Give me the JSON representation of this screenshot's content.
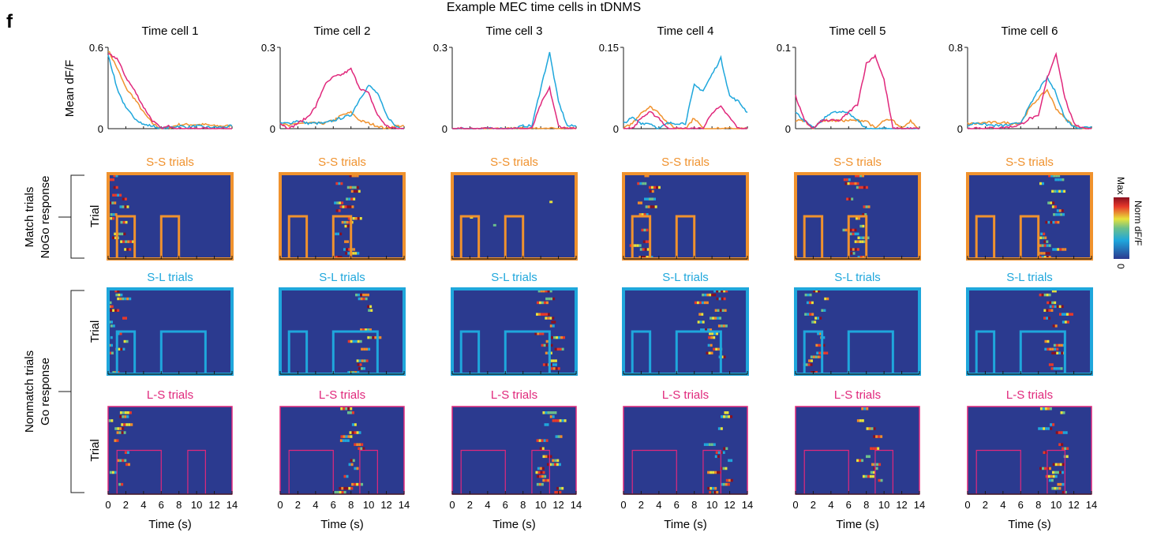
{
  "panel_letter": "f",
  "figure_title": "Example MEC time cells in tDNMS",
  "colors": {
    "SS": "#f0922e",
    "SL": "#1fa7dc",
    "LS": "#e0287c",
    "heatmap_bg": "#2b3a8f",
    "axis": "#1a1a1a"
  },
  "row_labels": {
    "match_line1": "Match trials",
    "match_line2": "NoGo response",
    "nonmatch_line1": "Nonmatch trials",
    "nonmatch_line2": "Go response",
    "trial": "Trial"
  },
  "heatmap_titles": {
    "SS": "S-S trials",
    "SL": "S-L trials",
    "LS": "L-S trials"
  },
  "colorbar": {
    "max_label": "Max",
    "min_label": "0",
    "label": "Norm dF/F"
  },
  "x_axis": {
    "label": "Time (s)",
    "ticks": [
      "0",
      "2",
      "4",
      "6",
      "8",
      "10",
      "12",
      "14"
    ],
    "range": [
      0,
      14
    ]
  },
  "y_axis_label": "Mean dF/F",
  "stimulus_windows": {
    "SS": [
      [
        1,
        3
      ],
      [
        6,
        8
      ]
    ],
    "SL": [
      [
        1,
        3
      ],
      [
        6,
        11
      ]
    ],
    "LS": [
      [
        1,
        6
      ],
      [
        9,
        11
      ]
    ]
  },
  "chart_data": [
    {
      "type": "line",
      "title": "Time cell 1",
      "ylim": [
        0,
        0.6
      ],
      "ytick_labels": [
        "0.6",
        "0"
      ],
      "x": [
        0,
        1,
        2,
        3,
        4,
        5,
        6,
        7,
        8,
        9,
        10,
        11,
        12,
        13,
        14
      ],
      "series": [
        {
          "name": "S-S",
          "values": [
            0.58,
            0.45,
            0.3,
            0.22,
            0.12,
            0.04,
            0.0,
            0.01,
            0.03,
            0.03,
            0.03,
            0.03,
            0.02,
            0.02,
            0.02
          ]
        },
        {
          "name": "S-L",
          "values": [
            0.55,
            0.3,
            0.15,
            0.08,
            0.03,
            0.02,
            0.0,
            0.01,
            0.02,
            0.01,
            0.02,
            0.01,
            0.01,
            0.01,
            0.02
          ]
        },
        {
          "name": "L-S",
          "values": [
            0.55,
            0.52,
            0.38,
            0.28,
            0.16,
            0.06,
            0.0,
            0.02,
            0.0,
            0.0,
            0.0,
            0.0,
            0.0,
            0.0,
            0.0
          ]
        }
      ]
    },
    {
      "type": "line",
      "title": "Time cell 2",
      "ylim": [
        0,
        0.3
      ],
      "ytick_labels": [
        "0.3",
        "0"
      ],
      "x": [
        0,
        1,
        2,
        3,
        4,
        5,
        6,
        7,
        8,
        9,
        10,
        11,
        12,
        13,
        14
      ],
      "series": [
        {
          "name": "S-S",
          "values": [
            0.02,
            0.01,
            0.02,
            0.02,
            0.02,
            0.02,
            0.03,
            0.05,
            0.06,
            0.03,
            0.02,
            0.01,
            0.0,
            0.01,
            0.01
          ]
        },
        {
          "name": "S-L",
          "values": [
            0.02,
            0.02,
            0.03,
            0.02,
            0.02,
            0.02,
            0.03,
            0.04,
            0.05,
            0.11,
            0.16,
            0.13,
            0.05,
            0.01,
            0.0
          ]
        },
        {
          "name": "L-S",
          "values": [
            0.02,
            0.0,
            0.02,
            0.04,
            0.08,
            0.16,
            0.19,
            0.2,
            0.22,
            0.15,
            0.13,
            0.05,
            0.01,
            0.0,
            0.0
          ]
        }
      ]
    },
    {
      "type": "line",
      "title": "Time cell 3",
      "ylim": [
        0,
        0.3
      ],
      "ytick_labels": [
        "0.3",
        "0"
      ],
      "x": [
        0,
        1,
        2,
        3,
        4,
        5,
        6,
        7,
        8,
        9,
        10,
        11,
        12,
        13,
        14
      ],
      "series": [
        {
          "name": "S-S",
          "values": [
            0,
            0,
            0,
            0,
            0,
            0,
            0,
            0,
            0,
            0,
            0,
            0,
            0,
            0,
            0
          ]
        },
        {
          "name": "S-L",
          "values": [
            0,
            0,
            0,
            0,
            0,
            0,
            0,
            0,
            0.01,
            0.01,
            0.15,
            0.28,
            0.1,
            0.01,
            0.01
          ]
        },
        {
          "name": "L-S",
          "values": [
            0,
            0,
            0,
            0,
            0,
            0,
            0,
            0,
            0,
            0,
            0.09,
            0.15,
            0.01,
            0,
            0
          ]
        }
      ]
    },
    {
      "type": "line",
      "title": "Time cell 4",
      "ylim": [
        0,
        0.15
      ],
      "ytick_labels": [
        "0.15",
        "0"
      ],
      "x": [
        0,
        1,
        2,
        3,
        4,
        5,
        6,
        7,
        8,
        9,
        10,
        11,
        12,
        13,
        14
      ],
      "series": [
        {
          "name": "S-S",
          "values": [
            0.0,
            0.01,
            0.03,
            0.04,
            0.03,
            0.01,
            0.0,
            0.0,
            0.02,
            0.0,
            0.0,
            0.0,
            0.0,
            0.0,
            0.0
          ]
        },
        {
          "name": "S-L",
          "values": [
            0.01,
            0.02,
            0.01,
            0.01,
            0.0,
            0.01,
            0.01,
            0.01,
            0.08,
            0.07,
            0.1,
            0.13,
            0.06,
            0.05,
            0.03
          ]
        },
        {
          "name": "L-S",
          "values": [
            0.0,
            0.0,
            0.02,
            0.03,
            0.02,
            0.0,
            0.0,
            0.0,
            0.0,
            0.0,
            0.03,
            0.04,
            0.02,
            0.0,
            0.0
          ]
        }
      ]
    },
    {
      "type": "line",
      "title": "Time cell 5",
      "ylim": [
        0,
        0.1
      ],
      "ytick_labels": [
        "0.1",
        "0"
      ],
      "x": [
        0,
        1,
        2,
        3,
        4,
        5,
        6,
        7,
        8,
        9,
        10,
        11,
        12,
        13,
        14
      ],
      "series": [
        {
          "name": "S-S",
          "values": [
            0.01,
            0.01,
            0.0,
            0.01,
            0.01,
            0.01,
            0.01,
            0.01,
            0.01,
            0.0,
            0.01,
            0.01,
            0.0,
            0.01,
            0.0
          ]
        },
        {
          "name": "S-L",
          "values": [
            0.02,
            0.01,
            0.0,
            0.01,
            0.02,
            0.02,
            0.02,
            0.01,
            0.0,
            0.0,
            0.0,
            0.0,
            0.0,
            0.0,
            0.0
          ]
        },
        {
          "name": "L-S",
          "values": [
            0.04,
            0.01,
            0.0,
            0.01,
            0.01,
            0.01,
            0.02,
            0.03,
            0.08,
            0.09,
            0.06,
            0.0,
            0.0,
            0.0,
            0.0
          ]
        }
      ]
    },
    {
      "type": "line",
      "title": "Time cell 6",
      "ylim": [
        0,
        0.8
      ],
      "ytick_labels": [
        "0.8",
        "0"
      ],
      "x": [
        0,
        1,
        2,
        3,
        4,
        5,
        6,
        7,
        8,
        9,
        10,
        11,
        12,
        13,
        14
      ],
      "series": [
        {
          "name": "S-S",
          "values": [
            0.05,
            0.05,
            0.06,
            0.06,
            0.06,
            0.05,
            0.06,
            0.2,
            0.3,
            0.38,
            0.2,
            0.1,
            0.03,
            0.01,
            0.0
          ]
        },
        {
          "name": "S-L",
          "values": [
            0.03,
            0.06,
            0.04,
            0.03,
            0.03,
            0.04,
            0.06,
            0.22,
            0.38,
            0.5,
            0.35,
            0.1,
            0.02,
            0.01,
            0.02
          ]
        },
        {
          "name": "L-S",
          "values": [
            0.0,
            0.01,
            0.0,
            0.01,
            0.01,
            0.02,
            0.04,
            0.1,
            0.12,
            0.5,
            0.74,
            0.3,
            0.05,
            0.01,
            0.0
          ]
        }
      ]
    }
  ],
  "heatmap_peaks": [
    {
      "cell": "Time cell 1",
      "SS": 1.0,
      "SL": 0.8,
      "LS": 1.0
    },
    {
      "cell": "Time cell 2",
      "SS": 7.5,
      "SL": 9.5,
      "LS": 8.0
    },
    {
      "cell": "Time cell 3",
      "SS": null,
      "SL": 11.0,
      "LS": 11.0
    },
    {
      "cell": "Time cell 4",
      "SS": 2.5,
      "SL": 10.0,
      "LS": 11.0
    },
    {
      "cell": "Time cell 5",
      "SS": 7.0,
      "SL": 2.5,
      "LS": 8.5
    },
    {
      "cell": "Time cell 6",
      "SS": 9.5,
      "SL": 10.0,
      "LS": 10.0
    }
  ]
}
